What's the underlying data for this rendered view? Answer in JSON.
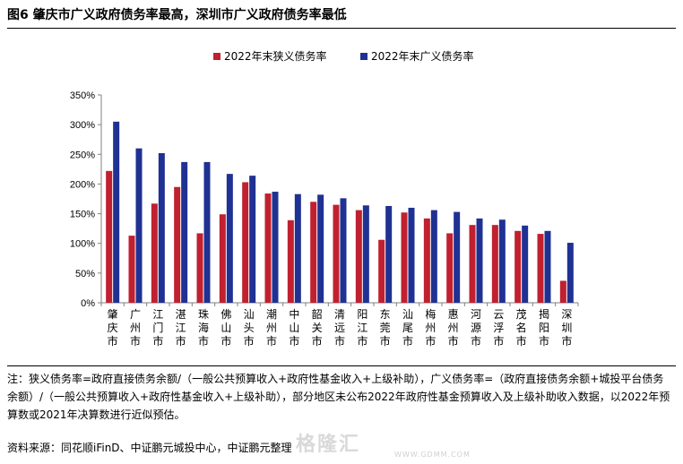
{
  "figure": {
    "title": "图6  肇庆市广义政府债务率最高，深圳市广义政府债务率最低"
  },
  "chart_data": {
    "type": "bar",
    "categories": [
      "肇庆市",
      "广州市",
      "江门市",
      "湛江市",
      "珠海市",
      "佛山市",
      "汕头市",
      "潮州市",
      "中山市",
      "韶关市",
      "清远市",
      "阳江市",
      "东莞市",
      "汕尾市",
      "梅州市",
      "惠州市",
      "河源市",
      "云浮市",
      "茂名市",
      "揭阳市",
      "深圳市"
    ],
    "series": [
      {
        "name": "2022年末狭义债务率",
        "color": "#c0202f",
        "values": [
          222,
          113,
          167,
          195,
          117,
          149,
          203,
          184,
          139,
          170,
          165,
          156,
          106,
          152,
          142,
          117,
          131,
          131,
          121,
          116,
          37
        ]
      },
      {
        "name": "2022年末广义债务率",
        "color": "#1f3192",
        "values": [
          305,
          260,
          252,
          237,
          237,
          217,
          214,
          187,
          183,
          182,
          176,
          164,
          163,
          160,
          156,
          153,
          142,
          140,
          130,
          121,
          101
        ]
      }
    ],
    "ylim": [
      0,
      350
    ],
    "yticks": [
      0,
      50,
      100,
      150,
      200,
      250,
      300,
      350
    ],
    "ytick_labels": [
      "0%",
      "50%",
      "100%",
      "150%",
      "200%",
      "250%",
      "300%",
      "350%"
    ],
    "legend_position": "top-center",
    "grid": false
  },
  "notes": {
    "text": "注：狭义债务率=政府直接债务余额/（一般公共预算收入+政府性基金收入+上级补助），广义债务率=（政府直接债务余额+城投平台债务余额）/（一般公共预算收入+政府性基金收入+上级补助），部分地区未公布2022年政府性基金预算收入及上级补助收入数据，以2022年预算数或2021年决算数进行近似预估。",
    "source": "资料来源：同花顺iFinD、中证鹏元城投中心，中证鹏元整理"
  },
  "watermark": {
    "text": "格隆汇",
    "url": "WWW.GDMM.COM"
  }
}
